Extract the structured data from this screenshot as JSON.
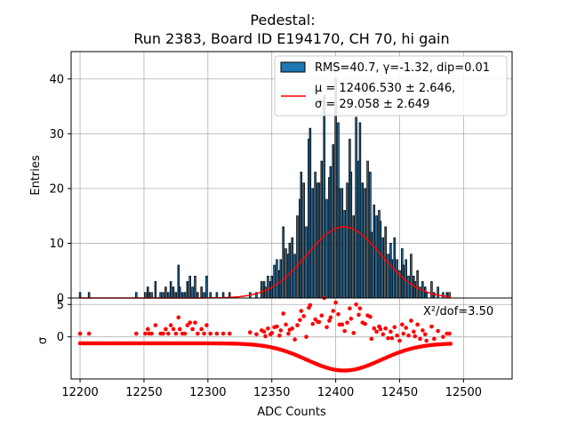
{
  "chart_data": {
    "type": "bar",
    "title_line1": "Pedestal:",
    "title_line2": "Run 2383, Board ID E194170, CH 70, hi gain",
    "xlabel": "ADC Counts",
    "ylabel_top": "Entries",
    "ylabel_bottom": "σ",
    "xlim": [
      12193,
      12538
    ],
    "ylim_top": [
      0,
      45
    ],
    "ylim_bottom": [
      -6.5,
      6.0
    ],
    "xticks": [
      12200,
      12250,
      12300,
      12350,
      12400,
      12450,
      12500
    ],
    "yticks_top": [
      0,
      10,
      20,
      30,
      40
    ],
    "yticks_bottom": [
      0,
      5
    ],
    "grid": true,
    "legend_position": "upper-right",
    "legend": {
      "histogram_label": "RMS=40.7, γ=-1.32, dip=0.01",
      "fit_label_line1": "μ = 12406.530 ± 2.646,",
      "fit_label_line2": "σ = 29.058 ± 2.649"
    },
    "annotation": "X²/dof=3.50",
    "colors": {
      "bars": "#1f77b4",
      "bar_edge": "#000000",
      "fit": "#ff0000",
      "residuals": "#ff0000"
    },
    "histogram": {
      "bins": [
        {
          "x": 12200,
          "y": 1
        },
        {
          "x": 12207,
          "y": 1
        },
        {
          "x": 12244,
          "y": 1
        },
        {
          "x": 12251,
          "y": 1
        },
        {
          "x": 12253,
          "y": 2
        },
        {
          "x": 12254,
          "y": 1
        },
        {
          "x": 12256,
          "y": 1
        },
        {
          "x": 12259,
          "y": 3
        },
        {
          "x": 12263,
          "y": 1
        },
        {
          "x": 12265,
          "y": 1
        },
        {
          "x": 12267,
          "y": 2
        },
        {
          "x": 12269,
          "y": 1
        },
        {
          "x": 12271,
          "y": 3
        },
        {
          "x": 12273,
          "y": 2
        },
        {
          "x": 12275,
          "y": 1
        },
        {
          "x": 12277,
          "y": 6
        },
        {
          "x": 12278,
          "y": 2
        },
        {
          "x": 12280,
          "y": 1
        },
        {
          "x": 12282,
          "y": 1
        },
        {
          "x": 12284,
          "y": 3
        },
        {
          "x": 12286,
          "y": 4
        },
        {
          "x": 12288,
          "y": 2
        },
        {
          "x": 12290,
          "y": 4
        },
        {
          "x": 12292,
          "y": 1
        },
        {
          "x": 12295,
          "y": 2
        },
        {
          "x": 12297,
          "y": 1
        },
        {
          "x": 12299,
          "y": 4
        },
        {
          "x": 12302,
          "y": 1
        },
        {
          "x": 12307,
          "y": 1
        },
        {
          "x": 12312,
          "y": 1
        },
        {
          "x": 12317,
          "y": 1
        },
        {
          "x": 12333,
          "y": 1
        },
        {
          "x": 12338,
          "y": 1
        },
        {
          "x": 12342,
          "y": 3
        },
        {
          "x": 12344,
          "y": 3
        },
        {
          "x": 12345,
          "y": 2
        },
        {
          "x": 12347,
          "y": 4
        },
        {
          "x": 12349,
          "y": 3
        },
        {
          "x": 12350,
          "y": 4
        },
        {
          "x": 12352,
          "y": 6
        },
        {
          "x": 12354,
          "y": 7
        },
        {
          "x": 12356,
          "y": 5
        },
        {
          "x": 12357,
          "y": 7
        },
        {
          "x": 12359,
          "y": 13
        },
        {
          "x": 12361,
          "y": 9
        },
        {
          "x": 12363,
          "y": 8
        },
        {
          "x": 12364,
          "y": 10
        },
        {
          "x": 12366,
          "y": 11
        },
        {
          "x": 12368,
          "y": 8
        },
        {
          "x": 12370,
          "y": 15
        },
        {
          "x": 12372,
          "y": 18
        },
        {
          "x": 12373,
          "y": 23
        },
        {
          "x": 12375,
          "y": 21
        },
        {
          "x": 12377,
          "y": 13
        },
        {
          "x": 12379,
          "y": 29
        },
        {
          "x": 12380,
          "y": 31
        },
        {
          "x": 12382,
          "y": 20
        },
        {
          "x": 12384,
          "y": 23
        },
        {
          "x": 12386,
          "y": 21
        },
        {
          "x": 12387,
          "y": 21
        },
        {
          "x": 12389,
          "y": 25
        },
        {
          "x": 12391,
          "y": 37
        },
        {
          "x": 12393,
          "y": 18
        },
        {
          "x": 12395,
          "y": 22
        },
        {
          "x": 12396,
          "y": 24
        },
        {
          "x": 12398,
          "y": 28
        },
        {
          "x": 12400,
          "y": 40
        },
        {
          "x": 12402,
          "y": 32
        },
        {
          "x": 12403,
          "y": 20
        },
        {
          "x": 12405,
          "y": 20
        },
        {
          "x": 12407,
          "y": 16
        },
        {
          "x": 12409,
          "y": 21
        },
        {
          "x": 12411,
          "y": 29
        },
        {
          "x": 12412,
          "y": 23
        },
        {
          "x": 12414,
          "y": 15
        },
        {
          "x": 12416,
          "y": 33
        },
        {
          "x": 12418,
          "y": 25
        },
        {
          "x": 12419,
          "y": 32
        },
        {
          "x": 12421,
          "y": 21
        },
        {
          "x": 12423,
          "y": 20
        },
        {
          "x": 12425,
          "y": 25
        },
        {
          "x": 12427,
          "y": 23
        },
        {
          "x": 12428,
          "y": 12
        },
        {
          "x": 12430,
          "y": 17
        },
        {
          "x": 12432,
          "y": 15
        },
        {
          "x": 12434,
          "y": 16
        },
        {
          "x": 12435,
          "y": 14
        },
        {
          "x": 12437,
          "y": 11
        },
        {
          "x": 12439,
          "y": 13
        },
        {
          "x": 12441,
          "y": 8
        },
        {
          "x": 12443,
          "y": 10
        },
        {
          "x": 12444,
          "y": 7
        },
        {
          "x": 12446,
          "y": 11
        },
        {
          "x": 12448,
          "y": 7
        },
        {
          "x": 12450,
          "y": 5
        },
        {
          "x": 12452,
          "y": 9
        },
        {
          "x": 12453,
          "y": 6
        },
        {
          "x": 12455,
          "y": 7
        },
        {
          "x": 12457,
          "y": 4
        },
        {
          "x": 12459,
          "y": 8
        },
        {
          "x": 12461,
          "y": 4
        },
        {
          "x": 12462,
          "y": 3
        },
        {
          "x": 12464,
          "y": 5
        },
        {
          "x": 12466,
          "y": 2
        },
        {
          "x": 12468,
          "y": 3
        },
        {
          "x": 12470,
          "y": 2
        },
        {
          "x": 12471,
          "y": 1
        },
        {
          "x": 12475,
          "y": 3
        },
        {
          "x": 12477,
          "y": 1
        },
        {
          "x": 12480,
          "y": 2
        },
        {
          "x": 12484,
          "y": 1
        },
        {
          "x": 12487,
          "y": 1
        },
        {
          "x": 12489,
          "y": 1
        }
      ]
    },
    "fit": {
      "type": "gaussian",
      "mu": 12406.53,
      "sigma": 29.058,
      "amplitude": 13.0,
      "x_range": [
        12200,
        12490
      ]
    },
    "residuals": {
      "observed_points": [
        {
          "x": 12200,
          "y": 0.5
        },
        {
          "x": 12207,
          "y": 0.5
        },
        {
          "x": 12244,
          "y": 0.5
        },
        {
          "x": 12251,
          "y": 0.5
        },
        {
          "x": 12253,
          "y": 1.2
        },
        {
          "x": 12254,
          "y": 0.5
        },
        {
          "x": 12256,
          "y": 0.5
        },
        {
          "x": 12259,
          "y": 1.8
        },
        {
          "x": 12263,
          "y": 0.5
        },
        {
          "x": 12265,
          "y": 0.5
        },
        {
          "x": 12267,
          "y": 1.2
        },
        {
          "x": 12269,
          "y": 0.5
        },
        {
          "x": 12271,
          "y": 1.8
        },
        {
          "x": 12273,
          "y": 1.2
        },
        {
          "x": 12275,
          "y": 0.5
        },
        {
          "x": 12277,
          "y": 3.0
        },
        {
          "x": 12278,
          "y": 1.2
        },
        {
          "x": 12280,
          "y": 0.5
        },
        {
          "x": 12282,
          "y": 0.5
        },
        {
          "x": 12284,
          "y": 1.8
        },
        {
          "x": 12286,
          "y": 2.2
        },
        {
          "x": 12288,
          "y": 1.2
        },
        {
          "x": 12290,
          "y": 2.2
        },
        {
          "x": 12292,
          "y": 0.5
        },
        {
          "x": 12295,
          "y": 1.2
        },
        {
          "x": 12297,
          "y": 0.5
        },
        {
          "x": 12299,
          "y": 1.8
        },
        {
          "x": 12302,
          "y": 0.5
        },
        {
          "x": 12307,
          "y": 0.5
        },
        {
          "x": 12312,
          "y": 0.5
        },
        {
          "x": 12317,
          "y": 0.5
        },
        {
          "x": 12333,
          "y": 0.7
        },
        {
          "x": 12338,
          "y": 0.4
        },
        {
          "x": 12342,
          "y": 1.0
        },
        {
          "x": 12344,
          "y": 0.8
        },
        {
          "x": 12345,
          "y": 0.1
        },
        {
          "x": 12347,
          "y": 1.3
        },
        {
          "x": 12349,
          "y": 0.4
        },
        {
          "x": 12350,
          "y": 0.6
        },
        {
          "x": 12352,
          "y": 1.5
        },
        {
          "x": 12354,
          "y": 1.6
        },
        {
          "x": 12356,
          "y": 0.2
        },
        {
          "x": 12357,
          "y": 1.0
        },
        {
          "x": 12359,
          "y": 3.6
        },
        {
          "x": 12361,
          "y": 1.9
        },
        {
          "x": 12363,
          "y": 0.5
        },
        {
          "x": 12364,
          "y": 1.1
        },
        {
          "x": 12366,
          "y": 1.3
        },
        {
          "x": 12368,
          "y": -0.4
        },
        {
          "x": 12370,
          "y": 1.8
        },
        {
          "x": 12372,
          "y": 2.6
        },
        {
          "x": 12373,
          "y": 4.0
        },
        {
          "x": 12375,
          "y": 3.2
        },
        {
          "x": 12377,
          "y": 0.0
        },
        {
          "x": 12379,
          "y": 4.5
        },
        {
          "x": 12380,
          "y": 4.9
        },
        {
          "x": 12382,
          "y": 2.0
        },
        {
          "x": 12384,
          "y": 2.7
        },
        {
          "x": 12386,
          "y": 2.3
        },
        {
          "x": 12387,
          "y": 2.3
        },
        {
          "x": 12389,
          "y": 3.3
        },
        {
          "x": 12391,
          "y": 6.0
        },
        {
          "x": 12393,
          "y": 1.5
        },
        {
          "x": 12395,
          "y": 2.5
        },
        {
          "x": 12396,
          "y": 3.0
        },
        {
          "x": 12398,
          "y": 4.0
        },
        {
          "x": 12400,
          "y": 5.3
        },
        {
          "x": 12402,
          "y": 3.5
        },
        {
          "x": 12403,
          "y": 1.9
        },
        {
          "x": 12405,
          "y": 1.9
        },
        {
          "x": 12407,
          "y": 0.9
        },
        {
          "x": 12409,
          "y": 2.2
        },
        {
          "x": 12411,
          "y": 4.4
        },
        {
          "x": 12412,
          "y": 2.8
        },
        {
          "x": 12414,
          "y": 0.6
        },
        {
          "x": 12416,
          "y": 5.0
        },
        {
          "x": 12418,
          "y": 3.4
        },
        {
          "x": 12419,
          "y": 4.4
        },
        {
          "x": 12421,
          "y": 2.2
        },
        {
          "x": 12423,
          "y": 2.0
        },
        {
          "x": 12425,
          "y": 3.3
        },
        {
          "x": 12427,
          "y": 3.1
        },
        {
          "x": 12428,
          "y": -0.3
        },
        {
          "x": 12430,
          "y": 1.3
        },
        {
          "x": 12432,
          "y": 0.8
        },
        {
          "x": 12434,
          "y": 1.6
        },
        {
          "x": 12435,
          "y": 1.2
        },
        {
          "x": 12437,
          "y": 0.4
        },
        {
          "x": 12439,
          "y": 1.3
        },
        {
          "x": 12441,
          "y": -0.2
        },
        {
          "x": 12443,
          "y": 0.8
        },
        {
          "x": 12444,
          "y": -0.2
        },
        {
          "x": 12446,
          "y": 1.5
        },
        {
          "x": 12448,
          "y": 0.2
        },
        {
          "x": 12450,
          "y": -0.6
        },
        {
          "x": 12452,
          "y": 1.9
        },
        {
          "x": 12453,
          "y": 0.5
        },
        {
          "x": 12455,
          "y": 1.4
        },
        {
          "x": 12457,
          "y": 0.2
        },
        {
          "x": 12459,
          "y": 2.5
        },
        {
          "x": 12461,
          "y": 0.8
        },
        {
          "x": 12462,
          "y": 0.1
        },
        {
          "x": 12464,
          "y": 1.9
        },
        {
          "x": 12466,
          "y": -0.3
        },
        {
          "x": 12468,
          "y": 1.0
        },
        {
          "x": 12470,
          "y": 0.4
        },
        {
          "x": 12471,
          "y": -0.6
        },
        {
          "x": 12475,
          "y": 1.6
        },
        {
          "x": 12477,
          "y": -0.3
        },
        {
          "x": 12480,
          "y": 0.9
        },
        {
          "x": 12484,
          "y": 0.0
        },
        {
          "x": 12487,
          "y": 0.5
        },
        {
          "x": 12489,
          "y": 0.5
        }
      ],
      "model_curve_note": "lower row of points = negative fit contribution, computed from fit parameters",
      "model_amplitude": 4.2,
      "model_baseline": -1.0
    }
  }
}
